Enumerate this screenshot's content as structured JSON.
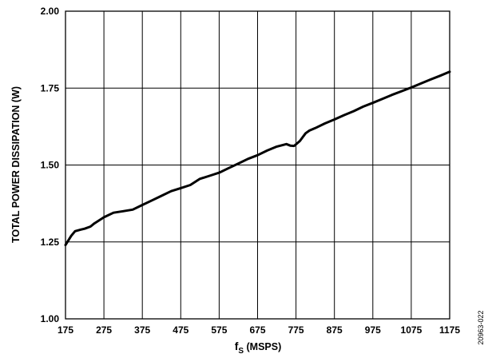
{
  "chart_data": {
    "type": "line",
    "title": "",
    "xlabel_main": "f",
    "xlabel_sub": "S",
    "xlabel_units": " (MSPS)",
    "ylabel": "TOTAL POWER DISSIPATION (W)",
    "xlim": [
      175,
      1175
    ],
    "ylim": [
      1.0,
      2.0
    ],
    "x_ticks": [
      "175",
      "275",
      "375",
      "475",
      "575",
      "675",
      "775",
      "875",
      "975",
      "1075",
      "1175"
    ],
    "y_ticks": [
      "1.00",
      "1.25",
      "1.50",
      "1.75",
      "2.00"
    ],
    "grid": true,
    "legend": "none",
    "line_color": "#000000",
    "figure_id": "20963-022",
    "series": [
      {
        "x": [
          175,
          190,
          200,
          215,
          225,
          240,
          250,
          275,
          300,
          325,
          350,
          375,
          400,
          425,
          450,
          475,
          500,
          525,
          550,
          575,
          600,
          625,
          650,
          675,
          700,
          725,
          750,
          760,
          770,
          785,
          800,
          810,
          825,
          850,
          875,
          900,
          925,
          950,
          975,
          1000,
          1025,
          1050,
          1075,
          1100,
          1125,
          1150,
          1175
        ],
        "y": [
          1.24,
          1.27,
          1.285,
          1.29,
          1.293,
          1.3,
          1.31,
          1.33,
          1.345,
          1.35,
          1.355,
          1.37,
          1.385,
          1.4,
          1.415,
          1.425,
          1.435,
          1.455,
          1.465,
          1.475,
          1.49,
          1.505,
          1.52,
          1.532,
          1.547,
          1.56,
          1.568,
          1.563,
          1.562,
          1.578,
          1.603,
          1.612,
          1.62,
          1.635,
          1.648,
          1.662,
          1.675,
          1.69,
          1.702,
          1.715,
          1.728,
          1.74,
          1.752,
          1.765,
          1.778,
          1.79,
          1.803
        ]
      }
    ]
  }
}
